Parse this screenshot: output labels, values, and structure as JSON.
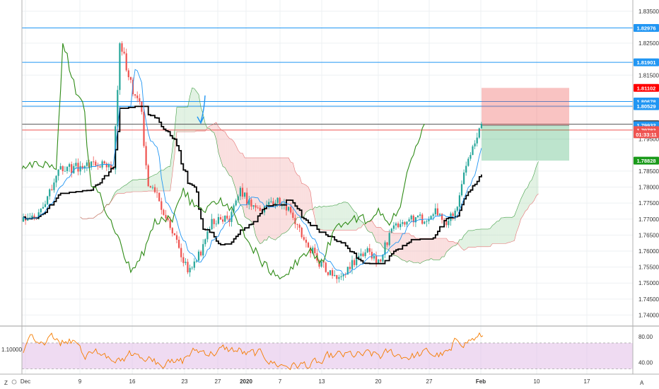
{
  "chart_data": [
    {
      "type": "candlestick",
      "title": "",
      "x_ticks": [
        "Dec",
        "9",
        "16",
        "23",
        "27",
        "2020",
        "7",
        "13",
        "20",
        "27",
        "Feb",
        "10",
        "17"
      ],
      "y_ticks": [
        "1.83500",
        "1.82500",
        "1.81500",
        "1.80500",
        "1.79500",
        "1.78500",
        "1.78000",
        "1.77500",
        "1.77000",
        "1.76500",
        "1.76000",
        "1.75500",
        "1.75000",
        "1.74500",
        "1.74000"
      ],
      "ylim": [
        1.737,
        1.8385
      ],
      "horizontal_levels": [
        {
          "value": "1.82976",
          "color": "#2196f3"
        },
        {
          "value": "1.81901",
          "color": "#2196f3"
        },
        {
          "value": "1.80678",
          "color": "#2196f3"
        },
        {
          "value": "1.80529",
          "color": "#2196f3"
        },
        {
          "value": "1.79965",
          "color": "#555555"
        },
        {
          "value": "1.79783",
          "color": "#ef5350"
        }
      ],
      "price_tags": [
        {
          "text": "1.82976",
          "value": 1.82976,
          "bg": "#2196f3"
        },
        {
          "text": "1.81901",
          "value": 1.81901,
          "bg": "#2196f3"
        },
        {
          "text": "1.81102",
          "value": 1.81102,
          "bg": "#ff0000"
        },
        {
          "text": "1.80678",
          "value": 1.80678,
          "bg": "#2196f3"
        },
        {
          "text": "1.80529",
          "value": 1.80529,
          "bg": "#2196f3"
        },
        {
          "text": "1.79965",
          "value": 1.79965,
          "bg": "#4a4a4a"
        },
        {
          "text": "1.79932",
          "value": 1.79932,
          "bg": "#2196f3"
        },
        {
          "text": "1.79783",
          "value": 1.79783,
          "bg": "#ef5350"
        },
        {
          "text": "01:33:11",
          "value": 1.7965,
          "bg": "#ef5350"
        },
        {
          "text": "1.78828",
          "value": 1.78828,
          "bg": "#1a9a1a"
        }
      ],
      "position": {
        "entry": 1.7993,
        "stop": 1.81102,
        "target": 1.78828
      },
      "series": [
        {
          "name": "",
          "kind": "candles",
          "colors": {
            "up": "#26a69a",
            "down": "#ef5350"
          }
        },
        {
          "name": "",
          "kind": "kijun",
          "color": "#000000"
        },
        {
          "name": "",
          "kind": "tenkan",
          "color": "#2196f3"
        },
        {
          "name": "",
          "kind": "chikou",
          "color": "#2e8b16"
        },
        {
          "name": "",
          "kind": "cloud",
          "colors": {
            "bull": "#a5d6a7",
            "bear": "#ef9a9a"
          }
        }
      ],
      "arrow_color": "#2196f3"
    },
    {
      "type": "line",
      "title": "",
      "y_ticks": [
        "80.00",
        "40.00"
      ],
      "ylim": [
        22,
        95
      ],
      "band": [
        30,
        70
      ],
      "band_color": "#e1bee7",
      "series_color": "#f57c00",
      "value_tag": "1.10000"
    }
  ],
  "toolbar": {
    "left_btn": "Z",
    "right_btn": "A"
  }
}
